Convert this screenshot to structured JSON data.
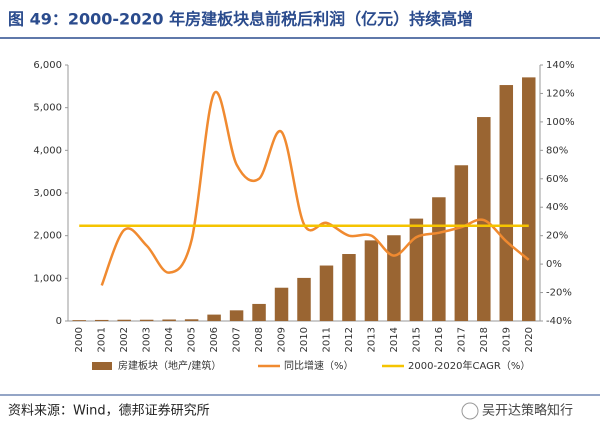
{
  "chart_data": {
    "type": "bar-line",
    "title": "图 49：2000-2020 年房建板块息前税后利润（亿元）持续高增",
    "categories": [
      "2000",
      "2001",
      "2002",
      "2003",
      "2004",
      "2005",
      "2006",
      "2007",
      "2008",
      "2009",
      "2010",
      "2011",
      "2012",
      "2013",
      "2014",
      "2015",
      "2016",
      "2017",
      "2018",
      "2019",
      "2020"
    ],
    "series": [
      {
        "name": "房建板块（地产/建筑）",
        "color": "#9a6532",
        "type": "bar",
        "values": [
          20,
          25,
          30,
          30,
          35,
          40,
          150,
          250,
          400,
          780,
          1010,
          1300,
          1570,
          1890,
          2010,
          2400,
          2900,
          3650,
          4780,
          5530,
          5710
        ]
      },
      {
        "name": "同比增速（%）",
        "color": "#f08a30",
        "type": "line",
        "axis": "y2",
        "values": [
          null,
          -15,
          24,
          13,
          -6,
          17,
          120,
          70,
          60,
          93,
          28,
          29,
          20,
          20,
          6,
          19,
          22,
          26,
          31,
          16,
          3
        ]
      },
      {
        "name": "2000-2020年CAGR（%）",
        "color": "#f5c400",
        "type": "hline",
        "axis": "y2",
        "value": 27
      }
    ],
    "ylim": [
      0,
      6000
    ],
    "yticks": [
      0,
      {
        "value": 1000,
        "label": "1,000"
      },
      {
        "value": 2000,
        "label": "2,000"
      },
      {
        "value": 3000,
        "label": "3,000"
      },
      {
        "value": 4000,
        "label": "4,000"
      },
      {
        "value": 5000,
        "label": "5,000"
      },
      {
        "value": 6000,
        "label": "6,000"
      }
    ],
    "y2lim": [
      -40,
      140
    ],
    "y2ticks": [
      {
        "value": -40,
        "label": "-40%"
      },
      {
        "value": -20,
        "label": "-20%"
      },
      {
        "value": 0,
        "label": "0%"
      },
      {
        "value": 20,
        "label": "20%"
      },
      {
        "value": 40,
        "label": "40%"
      },
      {
        "value": 60,
        "label": "60%"
      },
      {
        "value": 80,
        "label": "80%"
      },
      {
        "value": 100,
        "label": "100%"
      },
      {
        "value": 120,
        "label": "120%"
      },
      {
        "value": 140,
        "label": "140%"
      }
    ],
    "source": "资料来源：Wind，德邦证券研究所",
    "watermark": "吴开达策略知行"
  }
}
